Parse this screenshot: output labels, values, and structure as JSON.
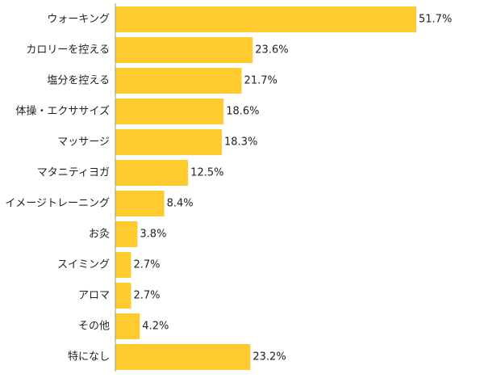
{
  "chart_data": {
    "type": "bar",
    "orientation": "horizontal",
    "categories": [
      "ウォーキング",
      "カロリーを控える",
      "塩分を控える",
      "体操・エクササイズ",
      "マッサージ",
      "マタニティヨガ",
      "イメージトレーニング",
      "お灸",
      "スイミング",
      "アロマ",
      "その他",
      "特になし"
    ],
    "values": [
      51.7,
      23.6,
      21.7,
      18.6,
      18.3,
      12.5,
      8.4,
      3.8,
      2.7,
      2.7,
      4.2,
      23.2
    ],
    "value_labels": [
      "51.7%",
      "23.6%",
      "21.7%",
      "18.6%",
      "18.3%",
      "12.5%",
      "8.4%",
      "3.8%",
      "2.7%",
      "2.7%",
      "4.2%",
      "23.2%"
    ],
    "unit": "%",
    "title": "",
    "xlabel": "",
    "ylabel": "",
    "xlim": [
      0,
      51.7
    ],
    "grid": false,
    "legend": "none",
    "bar_color": "#FFCB2E",
    "axis_color": "#999999"
  }
}
